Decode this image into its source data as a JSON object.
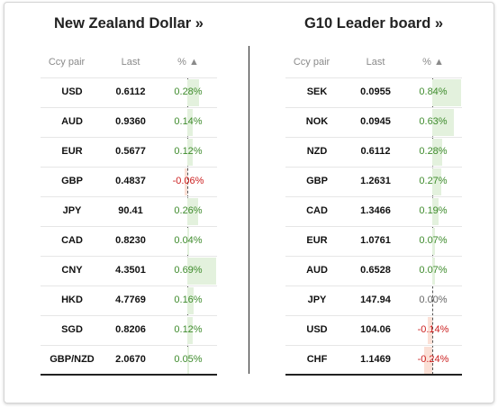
{
  "left_panel": {
    "title": "New Zealand Dollar »",
    "headers": {
      "ccy": "Ccy pair",
      "last": "Last",
      "pct": "% ▲"
    },
    "max_abs_change": 0.69,
    "rows": [
      {
        "ccy": "USD",
        "last": "0.6112",
        "pct": "0.28%",
        "change": 0.28
      },
      {
        "ccy": "AUD",
        "last": "0.9360",
        "pct": "0.14%",
        "change": 0.14
      },
      {
        "ccy": "EUR",
        "last": "0.5677",
        "pct": "0.12%",
        "change": 0.12
      },
      {
        "ccy": "GBP",
        "last": "0.4837",
        "pct": "-0.06%",
        "change": -0.06
      },
      {
        "ccy": "JPY",
        "last": "90.41",
        "pct": "0.26%",
        "change": 0.26
      },
      {
        "ccy": "CAD",
        "last": "0.8230",
        "pct": "0.04%",
        "change": 0.04
      },
      {
        "ccy": "CNY",
        "last": "4.3501",
        "pct": "0.69%",
        "change": 0.69
      },
      {
        "ccy": "HKD",
        "last": "4.7769",
        "pct": "0.16%",
        "change": 0.16
      },
      {
        "ccy": "SGD",
        "last": "0.8206",
        "pct": "0.12%",
        "change": 0.12
      },
      {
        "ccy": "GBP/NZD",
        "last": "2.0670",
        "pct": "0.05%",
        "change": 0.05
      }
    ]
  },
  "right_panel": {
    "title": "G10 Leader board »",
    "headers": {
      "ccy": "Ccy pair",
      "last": "Last",
      "pct": "% ▲"
    },
    "max_abs_change": 0.84,
    "rows": [
      {
        "ccy": "SEK",
        "last": "0.0955",
        "pct": "0.84%",
        "change": 0.84
      },
      {
        "ccy": "NOK",
        "last": "0.0945",
        "pct": "0.63%",
        "change": 0.63
      },
      {
        "ccy": "NZD",
        "last": "0.6112",
        "pct": "0.28%",
        "change": 0.28
      },
      {
        "ccy": "GBP",
        "last": "1.2631",
        "pct": "0.27%",
        "change": 0.27
      },
      {
        "ccy": "CAD",
        "last": "1.3466",
        "pct": "0.19%",
        "change": 0.19
      },
      {
        "ccy": "EUR",
        "last": "1.0761",
        "pct": "0.07%",
        "change": 0.07
      },
      {
        "ccy": "AUD",
        "last": "0.6528",
        "pct": "0.07%",
        "change": 0.07
      },
      {
        "ccy": "JPY",
        "last": "147.94",
        "pct": "0.00%",
        "change": 0.0
      },
      {
        "ccy": "USD",
        "last": "104.06",
        "pct": "-0.14%",
        "change": -0.14
      },
      {
        "ccy": "CHF",
        "last": "1.1469",
        "pct": "-0.24%",
        "change": -0.24
      }
    ]
  },
  "colors": {
    "positive_text": "#3e8b2c",
    "negative_text": "#cc1f1f",
    "positive_bar": "#e3f1dd",
    "negative_bar": "#fbe0d6"
  }
}
